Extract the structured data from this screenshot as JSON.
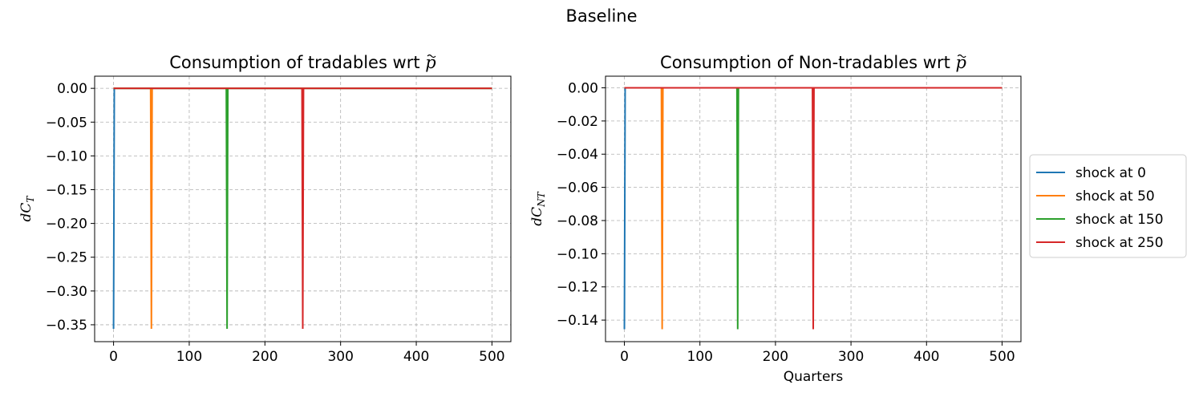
{
  "figure": {
    "suptitle": "Baseline"
  },
  "legend": {
    "location": "right",
    "entries": [
      {
        "label": "shock at 0",
        "color": "#1f77b4"
      },
      {
        "label": "shock at 50",
        "color": "#ff7f0e"
      },
      {
        "label": "shock at 150",
        "color": "#2ca02c"
      },
      {
        "label": "shock at 250",
        "color": "#d62728"
      }
    ]
  },
  "chart_data": [
    {
      "type": "line",
      "title_main": "Consumption of tradables wrt ",
      "title_symbol": "p",
      "ylabel_main": "dC",
      "ylabel_sub": "T",
      "xlabel": "",
      "xlim": [
        -25,
        525
      ],
      "ylim": [
        -0.375,
        0.018
      ],
      "grid": true,
      "x_ticks": [
        0,
        100,
        200,
        300,
        400,
        500
      ],
      "x_tick_labels": [
        "0",
        "100",
        "200",
        "300",
        "400",
        "500"
      ],
      "y_ticks": [
        0.0,
        -0.05,
        -0.1,
        -0.15,
        -0.2,
        -0.25,
        -0.3,
        -0.35
      ],
      "y_tick_labels": [
        "0.00",
        "−0.05",
        "−0.10",
        "−0.15",
        "−0.20",
        "−0.25",
        "−0.30",
        "−0.35"
      ],
      "series": [
        {
          "name": "shock at 0",
          "shock": 0,
          "x": [
            0,
            1,
            500
          ],
          "y": [
            -0.356,
            0.0,
            0.0
          ]
        },
        {
          "name": "shock at 50",
          "shock": 50,
          "x": [
            0,
            49,
            50,
            51,
            500
          ],
          "y": [
            0.0,
            0.0,
            -0.356,
            0.0,
            0.0
          ]
        },
        {
          "name": "shock at 150",
          "shock": 150,
          "x": [
            0,
            149,
            150,
            151,
            500
          ],
          "y": [
            0.0,
            0.0,
            -0.356,
            0.0,
            0.0
          ]
        },
        {
          "name": "shock at 250",
          "shock": 250,
          "x": [
            0,
            249,
            250,
            251,
            500
          ],
          "y": [
            0.0,
            0.0,
            -0.356,
            0.0,
            0.0
          ]
        }
      ]
    },
    {
      "type": "line",
      "title_main": "Consumption of Non-tradables wrt ",
      "title_symbol": "p",
      "ylabel_main": "dC",
      "ylabel_sub": "NT",
      "xlabel": "Quarters",
      "xlim": [
        -25,
        525
      ],
      "ylim": [
        -0.153,
        0.007
      ],
      "grid": true,
      "x_ticks": [
        0,
        100,
        200,
        300,
        400,
        500
      ],
      "x_tick_labels": [
        "0",
        "100",
        "200",
        "300",
        "400",
        "500"
      ],
      "y_ticks": [
        0.0,
        -0.02,
        -0.04,
        -0.06,
        -0.08,
        -0.1,
        -0.12,
        -0.14
      ],
      "y_tick_labels": [
        "0.00",
        "−0.02",
        "−0.04",
        "−0.06",
        "−0.08",
        "−0.10",
        "−0.12",
        "−0.14"
      ],
      "series": [
        {
          "name": "shock at 0",
          "shock": 0,
          "x": [
            0,
            1,
            500
          ],
          "y": [
            -0.1455,
            0.0,
            0.0
          ]
        },
        {
          "name": "shock at 50",
          "shock": 50,
          "x": [
            0,
            49,
            50,
            51,
            500
          ],
          "y": [
            0.0,
            0.0,
            -0.1455,
            0.0,
            0.0
          ]
        },
        {
          "name": "shock at 150",
          "shock": 150,
          "x": [
            0,
            149,
            150,
            151,
            500
          ],
          "y": [
            0.0,
            0.0,
            -0.1455,
            0.0,
            0.0
          ]
        },
        {
          "name": "shock at 250",
          "shock": 250,
          "x": [
            0,
            249,
            250,
            251,
            500
          ],
          "y": [
            0.0,
            0.0,
            -0.1455,
            0.0,
            0.0
          ]
        }
      ]
    }
  ]
}
